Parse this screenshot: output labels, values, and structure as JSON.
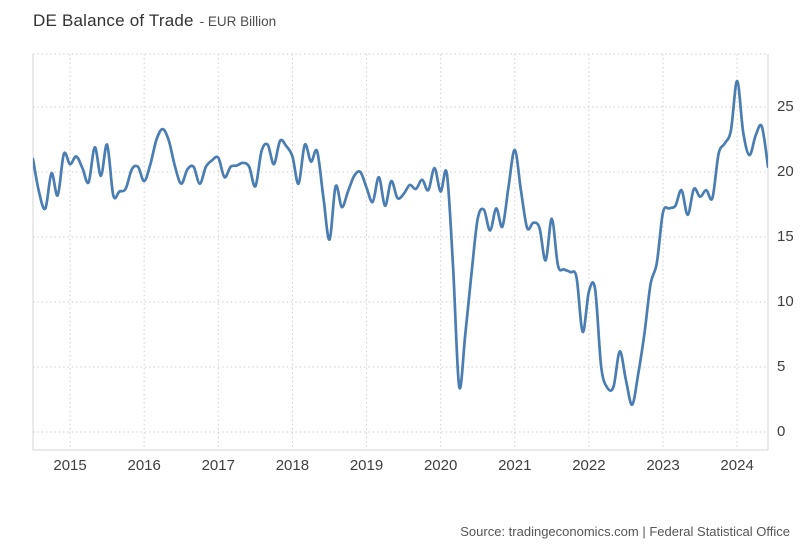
{
  "header": {
    "title": "DE Balance of Trade",
    "subtitle": "- EUR Billion"
  },
  "footer": {
    "source": "Source: tradingeconomics.com | Federal Statistical Office"
  },
  "colors": {
    "line": "#4a7db1",
    "grid": "#cfcfcf",
    "border": "#d4d4d4",
    "title_text": "#333333",
    "axis_text": "#404040",
    "source_text": "#555555"
  },
  "chart_data": {
    "type": "line",
    "title": "DE Balance of Trade",
    "units": "EUR Billion",
    "frequency": "monthly",
    "x_start": "2014-07",
    "x_end": "2024-06",
    "xlabel": "",
    "ylabel": "EUR Billion",
    "ylim": [
      0,
      29
    ],
    "grid": "dotted",
    "legend": "none",
    "y_ticks": [
      0,
      5,
      10,
      15,
      20,
      25
    ],
    "y_ticklabels": [
      "0",
      "5",
      "10",
      "15",
      "20",
      "25"
    ],
    "x_ticklabels": [
      "2015",
      "2016",
      "2017",
      "2018",
      "2019",
      "2020",
      "2021",
      "2022",
      "2023",
      "2024"
    ],
    "series": [
      {
        "name": "DE Balance of Trade",
        "values": [
          21.0,
          18.4,
          17.2,
          19.9,
          18.2,
          21.4,
          20.6,
          21.2,
          20.3,
          19.2,
          21.9,
          19.7,
          22.1,
          18.2,
          18.5,
          18.7,
          20.2,
          20.4,
          19.3,
          20.6,
          22.5,
          23.3,
          22.4,
          20.4,
          19.1,
          20.2,
          20.4,
          19.1,
          20.4,
          20.9,
          21.1,
          19.6,
          20.4,
          20.5,
          20.7,
          20.4,
          18.9,
          21.6,
          22.1,
          20.6,
          22.4,
          22.0,
          21.2,
          19.1,
          22.1,
          20.8,
          21.6,
          18.1,
          14.8,
          18.9,
          17.3,
          18.5,
          19.7,
          20.0,
          18.8,
          17.7,
          19.6,
          17.4,
          19.3,
          18.0,
          18.3,
          19.0,
          18.7,
          19.4,
          18.6,
          20.3,
          18.5,
          19.9,
          12.8,
          3.5,
          7.6,
          12.2,
          16.4,
          17.1,
          15.5,
          17.2,
          15.8,
          18.9,
          21.7,
          18.6,
          15.7,
          16.1,
          15.7,
          13.2,
          16.4,
          12.8,
          12.5,
          12.3,
          11.9,
          7.7,
          10.8,
          11.0,
          5.0,
          3.4,
          3.5,
          6.2,
          4.0,
          2.1,
          4.5,
          7.6,
          11.4,
          13.0,
          16.9,
          17.2,
          17.4,
          18.6,
          16.7,
          18.7,
          18.1,
          18.6,
          18.0,
          21.4,
          22.2,
          23.2,
          27.0,
          23.0,
          21.3,
          22.8,
          23.5,
          20.4
        ]
      }
    ]
  }
}
